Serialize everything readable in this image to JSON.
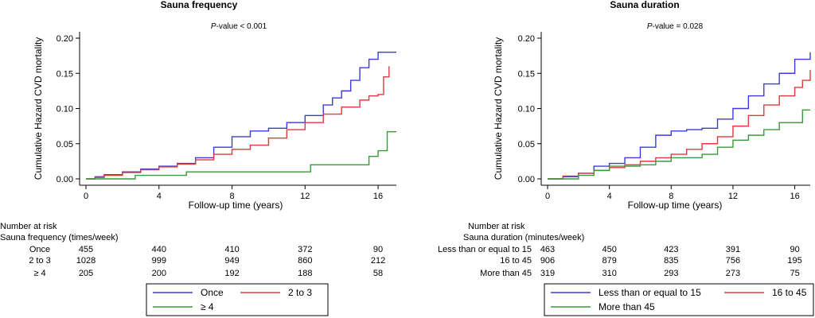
{
  "chart_data": [
    {
      "type": "line",
      "step": true,
      "title": "Sauna frequency",
      "annotation": {
        "prefix": "P",
        "text": "-value < 0.001"
      },
      "xlabel": "Follow-up time (years)",
      "ylabel": "Cumulative Hazard CVD mortality",
      "xlim": [
        0,
        17
      ],
      "ylim": [
        0,
        0.2
      ],
      "xticks": [
        "0",
        "4",
        "8",
        "12",
        "16"
      ],
      "xtick_values": [
        0,
        4,
        8,
        12,
        16
      ],
      "yticks": [
        "0.00",
        "0.05",
        "0.10",
        "0.15",
        "0.20"
      ],
      "ytick_values": [
        0,
        0.05,
        0.1,
        0.15,
        0.2
      ],
      "grid": false,
      "legend": "bottom",
      "series": [
        {
          "name": "Once",
          "color": "#3b3bdb",
          "x": [
            0,
            0.5,
            1,
            2,
            3,
            4,
            5,
            6,
            7,
            8,
            9,
            10,
            11,
            12,
            13,
            13.5,
            14,
            14.5,
            15,
            15.5,
            16,
            17
          ],
          "y": [
            0,
            0.003,
            0.006,
            0.01,
            0.014,
            0.018,
            0.022,
            0.03,
            0.045,
            0.06,
            0.068,
            0.072,
            0.08,
            0.09,
            0.105,
            0.115,
            0.125,
            0.14,
            0.158,
            0.17,
            0.18,
            0.18
          ]
        },
        {
          "name": "2 to 3",
          "color": "#e0393e",
          "x": [
            0,
            0.5,
            1,
            2,
            3,
            4,
            5,
            6,
            7,
            8,
            9,
            10,
            11,
            12,
            13,
            14,
            15,
            15.5,
            16,
            16.3,
            16.6
          ],
          "y": [
            0,
            0.002,
            0.005,
            0.009,
            0.013,
            0.017,
            0.021,
            0.027,
            0.035,
            0.042,
            0.048,
            0.058,
            0.07,
            0.08,
            0.092,
            0.102,
            0.112,
            0.118,
            0.12,
            0.145,
            0.16
          ]
        },
        {
          "name": "≥ 4",
          "color": "#3a9a3a",
          "x": [
            0,
            1.5,
            2.7,
            4,
            5.5,
            8,
            12,
            12.3,
            15,
            15.5,
            16,
            16.5,
            17
          ],
          "y": [
            0,
            0,
            0.005,
            0.005,
            0.01,
            0.01,
            0.01,
            0.02,
            0.02,
            0.032,
            0.04,
            0.067,
            0.067
          ]
        }
      ],
      "risk_table": {
        "header": "Number at risk",
        "subheader": "Sauna frequency (times/week)",
        "rows": [
          {
            "label": "Once",
            "values": [
              "455",
              "440",
              "410",
              "372",
              "90"
            ]
          },
          {
            "label": "2 to 3",
            "values": [
              "1028",
              "999",
              "949",
              "860",
              "212"
            ]
          },
          {
            "label": "≥ 4",
            "values": [
              "205",
              "200",
              "192",
              "188",
              "58"
            ]
          }
        ]
      }
    },
    {
      "type": "line",
      "step": true,
      "title": "Sauna duration",
      "annotation": {
        "prefix": "P",
        "text": "-value = 0.028"
      },
      "xlabel": "Follow-up time (years)",
      "ylabel": "Cumulative Hazard CVD mortality",
      "xlim": [
        0,
        17
      ],
      "ylim": [
        0,
        0.2
      ],
      "xticks": [
        "0",
        "4",
        "8",
        "12",
        "16"
      ],
      "xtick_values": [
        0,
        4,
        8,
        12,
        16
      ],
      "yticks": [
        "0.00",
        "0.05",
        "0.10",
        "0.15",
        "0.20"
      ],
      "ytick_values": [
        0,
        0.05,
        0.1,
        0.15,
        0.2
      ],
      "grid": false,
      "legend": "bottom",
      "series": [
        {
          "name": "Less than or equal to 15",
          "color": "#3b3bdb",
          "x": [
            0,
            1,
            2,
            3,
            4,
            5,
            6,
            7,
            8,
            9,
            10,
            11,
            12,
            13,
            14,
            15,
            16,
            17
          ],
          "y": [
            0,
            0.003,
            0.008,
            0.018,
            0.022,
            0.03,
            0.045,
            0.062,
            0.068,
            0.07,
            0.072,
            0.085,
            0.1,
            0.118,
            0.135,
            0.15,
            0.17,
            0.18
          ]
        },
        {
          "name": "16 to 45",
          "color": "#e0393e",
          "x": [
            0,
            1,
            2,
            3,
            4,
            5,
            6,
            7,
            8,
            9,
            10,
            11,
            12,
            13,
            14,
            15,
            16,
            16.5,
            17
          ],
          "y": [
            0,
            0.004,
            0.008,
            0.012,
            0.016,
            0.02,
            0.025,
            0.03,
            0.035,
            0.042,
            0.05,
            0.06,
            0.075,
            0.09,
            0.105,
            0.118,
            0.13,
            0.14,
            0.155
          ]
        },
        {
          "name": "More than 45",
          "color": "#3a9a3a",
          "x": [
            0,
            2,
            3,
            4,
            6,
            7,
            8,
            10,
            11,
            12,
            13,
            14,
            15,
            16,
            16.5,
            17
          ],
          "y": [
            0,
            0.005,
            0.012,
            0.018,
            0.02,
            0.025,
            0.03,
            0.035,
            0.045,
            0.055,
            0.062,
            0.07,
            0.08,
            0.08,
            0.098,
            0.098
          ]
        }
      ],
      "risk_table": {
        "header": "Number at risk",
        "subheader": "Sauna duration (minutes/week)",
        "rows": [
          {
            "label": "Less than or equal to 15",
            "values": [
              "463",
              "450",
              "423",
              "391",
              "90"
            ]
          },
          {
            "label": "16 to 45",
            "values": [
              "906",
              "879",
              "835",
              "756",
              "195"
            ]
          },
          {
            "label": "More than 45",
            "values": [
              "319",
              "310",
              "293",
              "273",
              "75"
            ]
          }
        ]
      }
    }
  ]
}
